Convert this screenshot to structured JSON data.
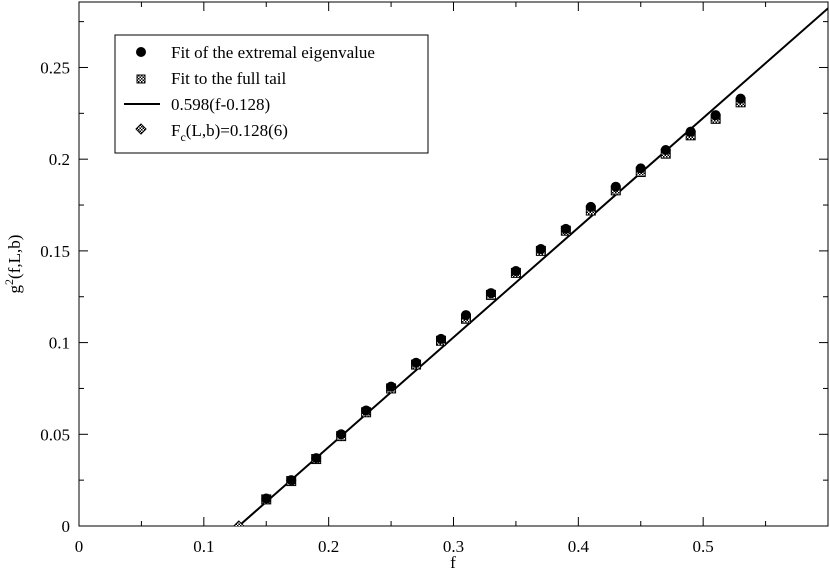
{
  "chart_data": {
    "type": "scatter",
    "xlabel": "f",
    "ylabel": {
      "base": "g",
      "sup": "2",
      "rest": "(f,L,b)"
    },
    "xlim": [
      0,
      0.6
    ],
    "ylim": [
      0,
      0.2857
    ],
    "x_ticks": [
      0,
      0.1,
      0.2,
      0.3,
      0.4,
      0.5
    ],
    "x_tick_labels": [
      "0",
      "0.1",
      "0.2",
      "0.3",
      "0.4",
      "0.5"
    ],
    "y_ticks": [
      0,
      0.05,
      0.1,
      0.15,
      0.2,
      0.25
    ],
    "y_tick_labels": [
      "0",
      "0.05",
      "0.1",
      "0.15",
      "0.2",
      "0.25"
    ],
    "grid": false,
    "legend_position": "top-left",
    "series": [
      {
        "name": "Fit of the extremal eigenvalue",
        "marker": "filled-circle",
        "x": [
          0.15,
          0.17,
          0.19,
          0.21,
          0.23,
          0.25,
          0.27,
          0.29,
          0.31,
          0.33,
          0.35,
          0.37,
          0.39,
          0.41,
          0.43,
          0.45,
          0.47,
          0.49,
          0.51,
          0.53
        ],
        "y": [
          0.015,
          0.025,
          0.037,
          0.05,
          0.063,
          0.076,
          0.089,
          0.102,
          0.115,
          0.127,
          0.139,
          0.151,
          0.162,
          0.174,
          0.185,
          0.195,
          0.205,
          0.215,
          0.224,
          0.233
        ]
      },
      {
        "name": "Fit to the full tail",
        "marker": "hatched-square",
        "x": [
          0.15,
          0.17,
          0.19,
          0.21,
          0.23,
          0.25,
          0.27,
          0.29,
          0.31,
          0.33,
          0.35,
          0.37,
          0.39,
          0.41,
          0.43,
          0.45,
          0.47,
          0.49,
          0.51,
          0.53
        ],
        "y": [
          0.0145,
          0.0245,
          0.0365,
          0.049,
          0.062,
          0.075,
          0.088,
          0.101,
          0.113,
          0.126,
          0.138,
          0.15,
          0.161,
          0.172,
          0.183,
          0.193,
          0.203,
          0.213,
          0.222,
          0.231
        ]
      },
      {
        "name": "0.598(f-0.128)",
        "marker": "line",
        "slope": 0.598,
        "intercept_x": 0.128
      },
      {
        "name": "F_c(L,b)=0.128(6)",
        "name_parts": {
          "base": "F",
          "sub": "c",
          "rest": "(L,b)=0.128(6)"
        },
        "marker": "hatched-diamond",
        "x": [
          0.128
        ],
        "y": [
          0.0
        ]
      }
    ]
  }
}
